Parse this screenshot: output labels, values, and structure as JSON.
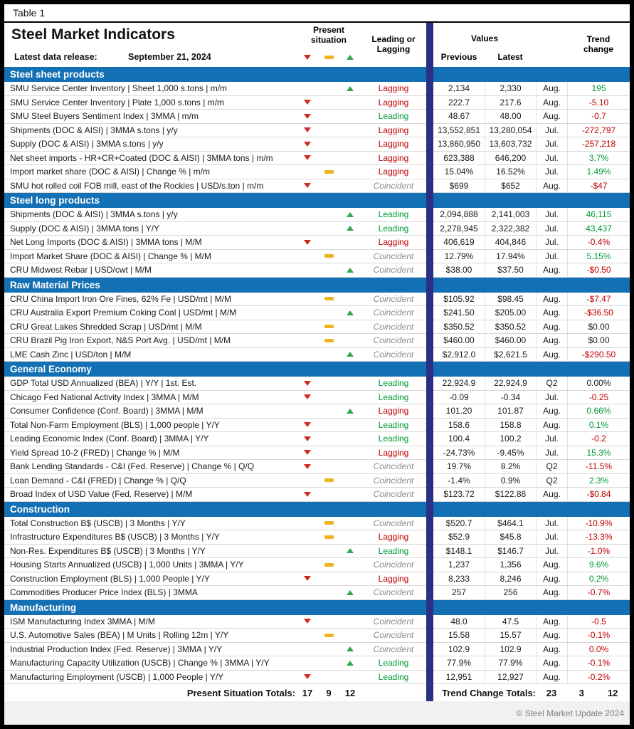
{
  "meta": {
    "table_label": "Table 1",
    "title": "Steel Market Indicators",
    "release_label": "Latest data release:",
    "release_date": "September 21, 2024",
    "copyright": "© Steel Market Update 2024"
  },
  "header": {
    "present_situation": "Present situation",
    "leading_or_lagging": "Leading or Lagging",
    "values": "Values",
    "previous": "Previous",
    "latest": "Latest",
    "trend_change": "Trend change"
  },
  "totals": {
    "present_label": "Present Situation Totals:",
    "present_values": [
      "17",
      "9",
      "12"
    ],
    "trend_label": "Trend Change Totals:",
    "trend_values": [
      "23",
      "3",
      "12"
    ]
  },
  "colors": {
    "section_bg": "#1470b4",
    "navy_bar": "#2a3184",
    "down_red": "#d02b20",
    "flat_yellow": "#efb520",
    "up_green": "#2fa84f",
    "leading_green": "#009933",
    "lagging_red": "#c00000",
    "coincident_gray": "#8c8c8c",
    "trend_pos": "#009933",
    "trend_neg": "#c00000"
  },
  "sections": [
    {
      "name": "Steel sheet products",
      "rows": [
        {
          "indicator": "SMU Service Center Inventory | Sheet 1,000 s.tons | m/m",
          "situation": "up",
          "classification": "Lagging",
          "previous": "2,134",
          "latest": "2,330",
          "period": "Aug.",
          "trend": "195",
          "trend_dir": "pos"
        },
        {
          "indicator": "SMU Service Center Inventory | Plate 1,000 s.tons | m/m",
          "situation": "down",
          "classification": "Lagging",
          "previous": "222.7",
          "latest": "217.6",
          "period": "Aug.",
          "trend": "-5.10",
          "trend_dir": "neg"
        },
        {
          "indicator": "SMU Steel Buyers Sentiment Index | 3MMA | m/m",
          "situation": "down",
          "classification": "Leading",
          "previous": "48.67",
          "latest": "48.00",
          "period": "Aug.",
          "trend": "-0.7",
          "trend_dir": "neg"
        },
        {
          "indicator": "Shipments (DOC & AISI) | 3MMA s.tons | y/y",
          "situation": "down",
          "classification": "Lagging",
          "previous": "13,552,851",
          "latest": "13,280,054",
          "period": "Jul.",
          "trend": "-272,797",
          "trend_dir": "neg"
        },
        {
          "indicator": "Supply (DOC & AISI) | 3MMA s.tons | y/y",
          "situation": "down",
          "classification": "Lagging",
          "previous": "13,860,950",
          "latest": "13,603,732",
          "period": "Jul.",
          "trend": "-257,218",
          "trend_dir": "neg"
        },
        {
          "indicator": "Net sheet imports - HR+CR+Coated (DOC & AISI) | 3MMA tons | m/m",
          "situation": "down",
          "classification": "Lagging",
          "previous": "623,388",
          "latest": "646,200",
          "period": "Jul.",
          "trend": "3.7%",
          "trend_dir": "pos"
        },
        {
          "indicator": "Import market share (DOC & AISI) | Change % | m/m",
          "situation": "flat",
          "classification": "Lagging",
          "previous": "15.04%",
          "latest": "16.52%",
          "period": "Jul.",
          "trend": "1.49%",
          "trend_dir": "pos"
        },
        {
          "indicator": "SMU hot rolled coil FOB mill, east of the Rockies | USD/s.ton | m/m",
          "situation": "down",
          "classification": "Coincident",
          "previous": "$699",
          "latest": "$652",
          "period": "Aug.",
          "trend": "-$47",
          "trend_dir": "neg"
        }
      ]
    },
    {
      "name": "Steel long products",
      "rows": [
        {
          "indicator": "Shipments (DOC & AISI) | 3MMA s.tons | y/y",
          "situation": "up",
          "classification": "Leading",
          "previous": "2,094,888",
          "latest": "2,141,003",
          "period": "Jul.",
          "trend": "46,115",
          "trend_dir": "pos"
        },
        {
          "indicator": "Supply (DOC & AISI) | 3MMA tons | Y/Y",
          "situation": "up",
          "classification": "Leading",
          "previous": "2,278,945",
          "latest": "2,322,382",
          "period": "Jul.",
          "trend": "43,437",
          "trend_dir": "pos"
        },
        {
          "indicator": "Net Long Imports (DOC & AISI) | 3MMA tons | M/M",
          "situation": "down",
          "classification": "Lagging",
          "previous": "406,619",
          "latest": "404,846",
          "period": "Jul.",
          "trend": "-0.4%",
          "trend_dir": "neg"
        },
        {
          "indicator": "Import Market Share (DOC & AISI) | Change % | M/M",
          "situation": "flat",
          "classification": "Coincident",
          "previous": "12.79%",
          "latest": "17.94%",
          "period": "Jul.",
          "trend": "5.15%",
          "trend_dir": "pos"
        },
        {
          "indicator": "CRU Midwest Rebar | USD/cwt | M/M",
          "situation": "up",
          "classification": "Coincident",
          "previous": "$38.00",
          "latest": "$37.50",
          "period": "Aug.",
          "trend": "-$0.50",
          "trend_dir": "neg"
        }
      ]
    },
    {
      "name": "Raw Material Prices",
      "rows": [
        {
          "indicator": "CRU China Import Iron Ore Fines, 62% Fe | USD/mt | M/M",
          "situation": "flat",
          "classification": "Coincident",
          "previous": "$105.92",
          "latest": "$98.45",
          "period": "Aug.",
          "trend": "-$7.47",
          "trend_dir": "neg"
        },
        {
          "indicator": "CRU Australia Export Premium Coking Coal | USD/mt | M/M",
          "situation": "up",
          "classification": "Coincident",
          "previous": "$241.50",
          "latest": "$205.00",
          "period": "Aug.",
          "trend": "-$36.50",
          "trend_dir": "neg"
        },
        {
          "indicator": "CRU Great Lakes Shredded Scrap | USD/mt | M/M",
          "situation": "flat",
          "classification": "Coincident",
          "previous": "$350.52",
          "latest": "$350.52",
          "period": "Aug.",
          "trend": "$0.00",
          "trend_dir": "zero"
        },
        {
          "indicator": "CRU Brazil Pig Iron Export, N&S Port Avg. | USD/mt | M/M",
          "situation": "flat",
          "classification": "Coincident",
          "previous": "$460.00",
          "latest": "$460.00",
          "period": "Aug.",
          "trend": "$0.00",
          "trend_dir": "zero"
        },
        {
          "indicator": "LME Cash Zinc | USD/ton | M/M",
          "situation": "up",
          "classification": "Coincident",
          "previous": "$2,912.0",
          "latest": "$2,621.5",
          "period": "Aug.",
          "trend": "-$290.50",
          "trend_dir": "neg"
        }
      ]
    },
    {
      "name": "General Economy",
      "rows": [
        {
          "indicator": "GDP Total USD Annualized (BEA) | Y/Y | 1st. Est.",
          "situation": "down",
          "classification": "Leading",
          "previous": "22,924.9",
          "latest": "22,924.9",
          "period": "Q2",
          "trend": "0.00%",
          "trend_dir": "zero"
        },
        {
          "indicator": "Chicago Fed National Activity Index | 3MMA | M/M",
          "situation": "down",
          "classification": "Leading",
          "previous": "-0.09",
          "latest": "-0.34",
          "period": "Jul.",
          "trend": "-0.25",
          "trend_dir": "neg"
        },
        {
          "indicator": "Consumer Confidence (Conf. Board) | 3MMA | M/M",
          "situation": "up",
          "classification": "Lagging",
          "previous": "101.20",
          "latest": "101.87",
          "period": "Aug.",
          "trend": "0.66%",
          "trend_dir": "pos"
        },
        {
          "indicator": "Total Non-Farm Employment (BLS) | 1,000 people | Y/Y",
          "situation": "down",
          "classification": "Leading",
          "previous": "158.6",
          "latest": "158.8",
          "period": "Aug.",
          "trend": "0.1%",
          "trend_dir": "pos"
        },
        {
          "indicator": "Leading Economic Index (Conf. Board) | 3MMA | Y/Y",
          "situation": "down",
          "classification": "Leading",
          "previous": "100.4",
          "latest": "100.2",
          "period": "Jul.",
          "trend": "-0.2",
          "trend_dir": "neg"
        },
        {
          "indicator": "Yield Spread 10-2 (FRED) | Change % | M/M",
          "situation": "down",
          "classification": "Lagging",
          "previous": "-24.73%",
          "latest": "-9.45%",
          "period": "Jul.",
          "trend": "15.3%",
          "trend_dir": "pos"
        },
        {
          "indicator": "Bank Lending Standards - C&I (Fed. Reserve) | Change % | Q/Q",
          "situation": "down",
          "classification": "Coincident",
          "previous": "19.7%",
          "latest": "8.2%",
          "period": "Q2",
          "trend": "-11.5%",
          "trend_dir": "neg"
        },
        {
          "indicator": "Loan Demand - C&I (FRED) | Change % | Q/Q",
          "situation": "flat",
          "classification": "Coincident",
          "previous": "-1.4%",
          "latest": "0.9%",
          "period": "Q2",
          "trend": "2.3%",
          "trend_dir": "pos"
        },
        {
          "indicator": "Broad Index of USD Value (Fed. Reserve) | M/M",
          "situation": "down",
          "classification": "Coincident",
          "previous": "$123.72",
          "latest": "$122.88",
          "period": "Aug.",
          "trend": "-$0.84",
          "trend_dir": "neg"
        }
      ]
    },
    {
      "name": "Construction",
      "rows": [
        {
          "indicator": "Total Construction B$ (USCB) | 3 Months | Y/Y",
          "situation": "flat",
          "classification": "Coincident",
          "previous": "$520.7",
          "latest": "$464.1",
          "period": "Jul.",
          "trend": "-10.9%",
          "trend_dir": "neg"
        },
        {
          "indicator": "Infrastructure Expenditures B$ (USCB) | 3 Months | Y/Y",
          "situation": "flat",
          "classification": "Lagging",
          "previous": "$52.9",
          "latest": "$45.8",
          "period": "Jul.",
          "trend": "-13.3%",
          "trend_dir": "neg"
        },
        {
          "indicator": "Non-Res. Expenditures B$ (USCB) | 3 Months | Y/Y",
          "situation": "up",
          "classification": "Leading",
          "previous": "$148.1",
          "latest": "$146.7",
          "period": "Jul.",
          "trend": "-1.0%",
          "trend_dir": "neg"
        },
        {
          "indicator": "Housing Starts Annualized (USCB) | 1,000 Units | 3MMA | Y/Y",
          "situation": "flat",
          "classification": "Coincident",
          "previous": "1,237",
          "latest": "1,356",
          "period": "Aug.",
          "trend": "9.6%",
          "trend_dir": "pos"
        },
        {
          "indicator": "Construction Employment (BLS) | 1,000 People | Y/Y",
          "situation": "down",
          "classification": "Lagging",
          "previous": "8,233",
          "latest": "8,246",
          "period": "Aug.",
          "trend": "0.2%",
          "trend_dir": "pos"
        },
        {
          "indicator": "Commodities Producer Price Index (BLS) | 3MMA",
          "situation": "up",
          "classification": "Coincident",
          "previous": "257",
          "latest": "256",
          "period": "Aug.",
          "trend": "-0.7%",
          "trend_dir": "neg"
        }
      ]
    },
    {
      "name": "Manufacturing",
      "rows": [
        {
          "indicator": "ISM Manufacturing Index 3MMA | M/M",
          "situation": "down",
          "classification": "Coincident",
          "previous": "48.0",
          "latest": "47.5",
          "period": "Aug.",
          "trend": "-0.5",
          "trend_dir": "neg"
        },
        {
          "indicator": "U.S. Automotive Sales (BEA) | M Units | Rolling 12m | Y/Y",
          "situation": "flat",
          "classification": "Coincident",
          "previous": "15.58",
          "latest": "15.57",
          "period": "Aug.",
          "trend": "-0.1%",
          "trend_dir": "neg"
        },
        {
          "indicator": "Industrial Production Index (Fed. Reserve) | 3MMA | Y/Y",
          "situation": "up",
          "classification": "Coincident",
          "previous": "102.9",
          "latest": "102.9",
          "period": "Aug.",
          "trend": "0.0%",
          "trend_dir": "neg"
        },
        {
          "indicator": "Manufacturing Capacity Utilization (USCB) | Change % | 3MMA | Y/Y",
          "situation": "up",
          "classification": "Leading",
          "previous": "77.9%",
          "latest": "77.9%",
          "period": "Aug.",
          "trend": "-0.1%",
          "trend_dir": "neg"
        },
        {
          "indicator": "Manufacturing Employment (USCB) | 1,000 People | Y/Y",
          "situation": "down",
          "classification": "Leading",
          "previous": "12,951",
          "latest": "12,927",
          "period": "Aug.",
          "trend": "-0.2%",
          "trend_dir": "neg"
        }
      ]
    }
  ]
}
